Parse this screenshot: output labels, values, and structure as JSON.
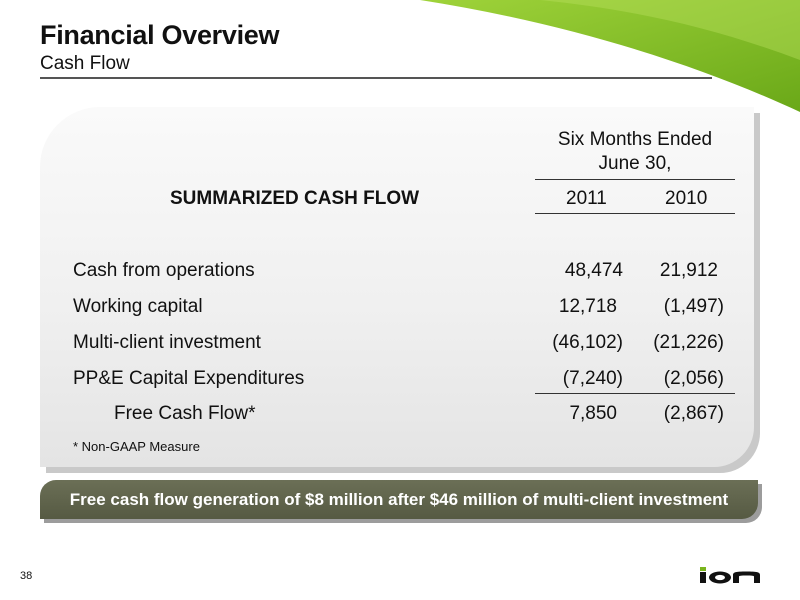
{
  "header": {
    "title": "Financial Overview",
    "subtitle": "Cash Flow"
  },
  "table": {
    "section_title": "SUMMARIZED CASH FLOW",
    "period_label_line1": "Six Months Ended",
    "period_label_line2": "June 30,",
    "years": [
      "2011",
      "2010"
    ],
    "rows": [
      {
        "label": "Cash from operations",
        "v2011": "48,474",
        "v2010": "21,912"
      },
      {
        "label": "Working capital",
        "v2011": "12,718",
        "v2010": "(1,497)"
      },
      {
        "label": "Multi-client investment",
        "v2011": "(46,102)",
        "v2010": "(21,226)"
      },
      {
        "label": "PP&E Capital Expenditures",
        "v2011": "(7,240)",
        "v2010": "(2,056)"
      },
      {
        "label": "Free Cash Flow*",
        "v2011": "7,850",
        "v2010": "(2,867)"
      }
    ],
    "footnote": "* Non-GAAP Measure"
  },
  "banner": {
    "text": "Free cash flow generation of $8 million after $46 million of multi-client investment"
  },
  "footer": {
    "page_number": "38",
    "logo_text": "ion"
  },
  "colors": {
    "accent_green": "#7ab51d",
    "banner_olive": "#5e624a"
  }
}
